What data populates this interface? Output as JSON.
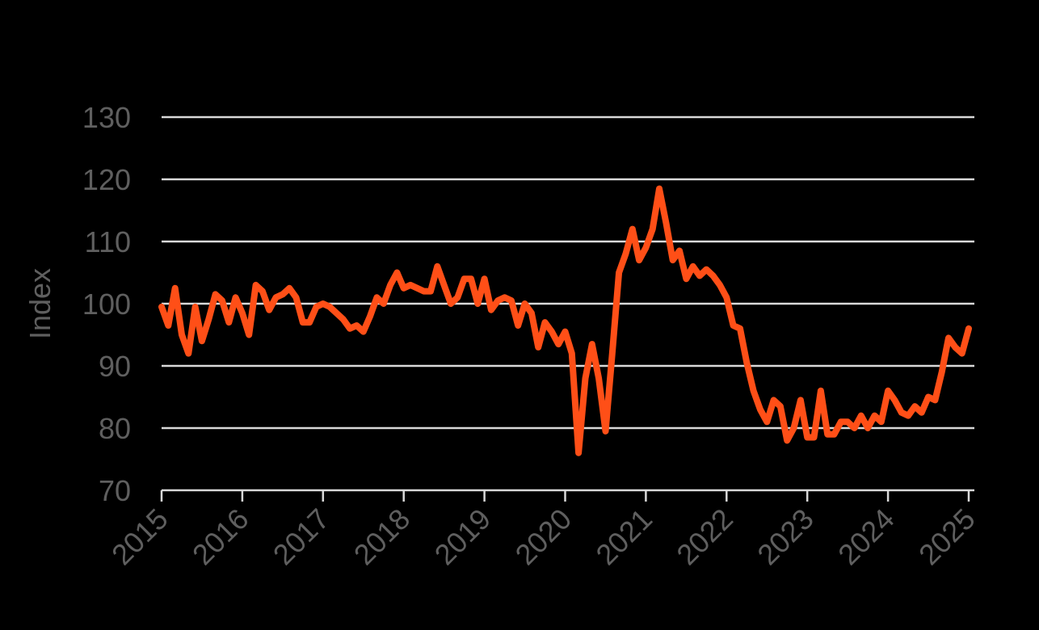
{
  "chart_data": {
    "type": "line",
    "title": "",
    "xlabel": "",
    "ylabel": "Index",
    "ylim": [
      70,
      130
    ],
    "yticks": [
      70,
      80,
      90,
      100,
      110,
      120,
      130
    ],
    "xlim": [
      2015,
      2025
    ],
    "xticks": [
      "2015",
      "2016",
      "2017",
      "2018",
      "2019",
      "2020",
      "2021",
      "2022",
      "2023",
      "2024",
      "2025"
    ],
    "grid": true,
    "legend": "none",
    "colors": {
      "line": "#ff4f17",
      "grid": "#d9d9d9",
      "background": "#000000",
      "text": "#5f5f5f"
    },
    "series": [
      {
        "name": "Index",
        "frequency": "monthly",
        "start": "2015-01",
        "values": [
          99.5,
          96.5,
          102.5,
          95,
          92,
          99.5,
          94,
          97.5,
          101.5,
          100.5,
          97,
          101,
          98.5,
          95,
          103,
          102,
          99,
          101,
          101.5,
          102.5,
          101,
          97,
          97,
          99.5,
          100,
          99.5,
          98.5,
          97.5,
          96,
          96.5,
          95.5,
          98,
          101,
          100,
          103,
          105,
          102.5,
          103,
          102.5,
          102,
          102,
          106,
          103,
          100,
          101,
          104,
          104,
          100,
          104,
          99,
          100.5,
          101,
          100.5,
          96.5,
          100,
          98.5,
          93,
          97,
          95.5,
          93.5,
          95.5,
          92,
          76,
          88,
          93.5,
          88,
          79.5,
          92,
          105,
          108,
          112,
          107,
          109,
          112,
          118.5,
          113,
          107,
          108.5,
          104,
          106,
          104.5,
          105.5,
          104.5,
          103,
          101,
          96.5,
          96,
          90.5,
          86,
          83,
          81,
          84.5,
          83.5,
          78,
          80,
          84.5,
          78.5,
          78.5,
          86,
          79,
          79,
          81,
          81,
          80,
          82,
          80,
          82,
          81,
          86,
          84.5,
          82.5,
          82,
          83.5,
          82.5,
          85,
          84.5,
          89,
          94.5,
          93,
          92,
          96
        ]
      }
    ]
  }
}
